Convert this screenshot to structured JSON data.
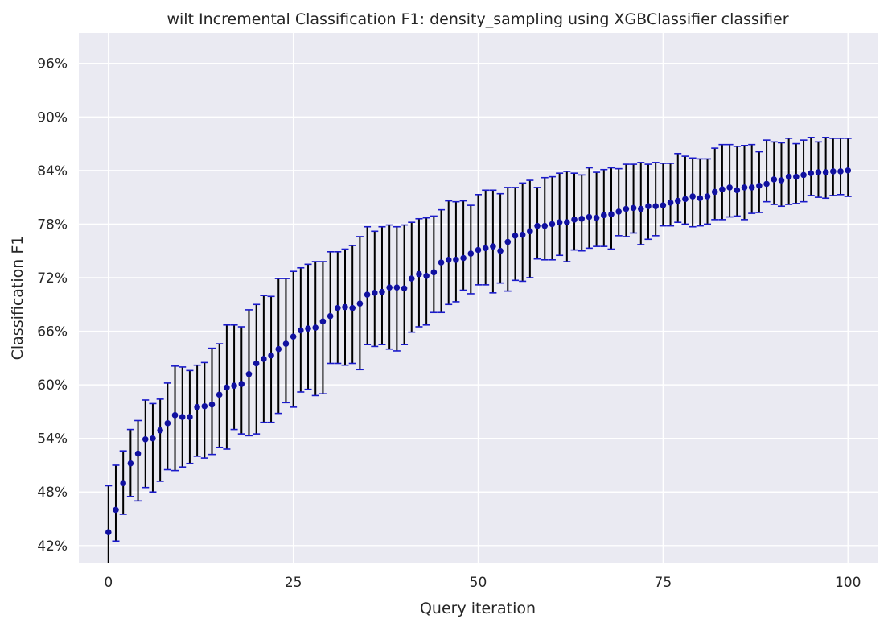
{
  "chart_data": {
    "type": "scatter",
    "title": "wilt Incremental Classification F1: density_sampling using XGBClassifier classifier",
    "xlabel": "Query iteration",
    "ylabel": "Classification F1",
    "xlim": [
      -4,
      104
    ],
    "ylim": [
      0.4,
      0.994
    ],
    "x_ticks": [
      0,
      25,
      50,
      75,
      100
    ],
    "y_ticks": [
      0.42,
      0.48,
      0.54,
      0.6,
      0.66,
      0.72,
      0.78,
      0.84,
      0.9,
      0.96
    ],
    "y_tick_labels": [
      "42%",
      "48%",
      "54%",
      "60%",
      "66%",
      "72%",
      "78%",
      "84%",
      "90%",
      "96%"
    ],
    "grid": true,
    "colors": {
      "background": "#eaeaf2",
      "grid": "#ffffff",
      "marker": "#1010a0",
      "errorbar": "#000000",
      "cap": "#1a1acc",
      "text": "#262626"
    },
    "series": [
      {
        "x": [
          0,
          1,
          2,
          3,
          4,
          5,
          6,
          7,
          8,
          9,
          10,
          11,
          12,
          13,
          14,
          15,
          16,
          17,
          18,
          19,
          20,
          21,
          22,
          23,
          24,
          25,
          26,
          27,
          28,
          29,
          30,
          31,
          32,
          33,
          34,
          35,
          36,
          37,
          38,
          39,
          40,
          41,
          42,
          43,
          44,
          45,
          46,
          47,
          48,
          49,
          50,
          51,
          52,
          53,
          54,
          55,
          56,
          57,
          58,
          59,
          60,
          61,
          62,
          63,
          64,
          65,
          66,
          67,
          68,
          69,
          70,
          71,
          72,
          73,
          74,
          75,
          76,
          77,
          78,
          79,
          80,
          81,
          82,
          83,
          84,
          85,
          86,
          87,
          88,
          89,
          90,
          91,
          92,
          93,
          94,
          95,
          96,
          97,
          98,
          99,
          100
        ],
        "y": [
          0.435,
          0.46,
          0.49,
          0.512,
          0.523,
          0.539,
          0.54,
          0.549,
          0.557,
          0.566,
          0.564,
          0.564,
          0.575,
          0.576,
          0.578,
          0.589,
          0.597,
          0.599,
          0.601,
          0.612,
          0.624,
          0.629,
          0.633,
          0.64,
          0.646,
          0.654,
          0.661,
          0.663,
          0.664,
          0.671,
          0.677,
          0.686,
          0.687,
          0.686,
          0.691,
          0.701,
          0.703,
          0.704,
          0.709,
          0.709,
          0.708,
          0.719,
          0.724,
          0.722,
          0.726,
          0.737,
          0.74,
          0.74,
          0.742,
          0.747,
          0.751,
          0.753,
          0.755,
          0.75,
          0.76,
          0.767,
          0.768,
          0.772,
          0.778,
          0.778,
          0.78,
          0.782,
          0.782,
          0.785,
          0.786,
          0.788,
          0.787,
          0.79,
          0.791,
          0.794,
          0.797,
          0.798,
          0.797,
          0.8,
          0.8,
          0.801,
          0.804,
          0.806,
          0.808,
          0.811,
          0.809,
          0.811,
          0.816,
          0.819,
          0.821,
          0.818,
          0.821,
          0.821,
          0.823,
          0.825,
          0.83,
          0.829,
          0.833,
          0.833,
          0.835,
          0.837,
          0.838,
          0.838,
          0.839,
          0.839,
          0.84
        ],
        "yerr_low": [
          0.395,
          0.425,
          0.455,
          0.475,
          0.47,
          0.485,
          0.48,
          0.492,
          0.505,
          0.504,
          0.508,
          0.512,
          0.52,
          0.518,
          0.522,
          0.53,
          0.528,
          0.55,
          0.545,
          0.543,
          0.545,
          0.558,
          0.558,
          0.568,
          0.58,
          0.575,
          0.592,
          0.595,
          0.588,
          0.59,
          0.624,
          0.624,
          0.622,
          0.624,
          0.617,
          0.645,
          0.643,
          0.645,
          0.64,
          0.638,
          0.645,
          0.659,
          0.665,
          0.667,
          0.681,
          0.681,
          0.69,
          0.693,
          0.706,
          0.702,
          0.712,
          0.712,
          0.703,
          0.714,
          0.705,
          0.717,
          0.716,
          0.72,
          0.741,
          0.74,
          0.74,
          0.745,
          0.738,
          0.751,
          0.75,
          0.753,
          0.755,
          0.755,
          0.752,
          0.767,
          0.766,
          0.77,
          0.757,
          0.763,
          0.767,
          0.778,
          0.778,
          0.782,
          0.78,
          0.777,
          0.778,
          0.78,
          0.785,
          0.785,
          0.788,
          0.789,
          0.785,
          0.792,
          0.793,
          0.805,
          0.802,
          0.8,
          0.802,
          0.803,
          0.805,
          0.812,
          0.81,
          0.809,
          0.812,
          0.813,
          0.811
        ],
        "yerr_high": [
          0.487,
          0.51,
          0.526,
          0.55,
          0.56,
          0.583,
          0.579,
          0.584,
          0.602,
          0.621,
          0.62,
          0.616,
          0.622,
          0.625,
          0.641,
          0.646,
          0.667,
          0.667,
          0.665,
          0.684,
          0.69,
          0.7,
          0.699,
          0.719,
          0.719,
          0.727,
          0.731,
          0.735,
          0.738,
          0.738,
          0.749,
          0.749,
          0.752,
          0.756,
          0.766,
          0.777,
          0.772,
          0.777,
          0.779,
          0.777,
          0.779,
          0.782,
          0.786,
          0.787,
          0.789,
          0.796,
          0.806,
          0.805,
          0.806,
          0.801,
          0.813,
          0.818,
          0.818,
          0.814,
          0.821,
          0.821,
          0.826,
          0.829,
          0.821,
          0.832,
          0.833,
          0.837,
          0.839,
          0.837,
          0.835,
          0.843,
          0.838,
          0.841,
          0.843,
          0.842,
          0.847,
          0.847,
          0.849,
          0.847,
          0.849,
          0.848,
          0.848,
          0.859,
          0.856,
          0.854,
          0.853,
          0.853,
          0.865,
          0.869,
          0.869,
          0.867,
          0.868,
          0.869,
          0.861,
          0.874,
          0.872,
          0.871,
          0.876,
          0.87,
          0.874,
          0.877,
          0.872,
          0.877,
          0.876,
          0.876,
          0.876
        ]
      }
    ]
  }
}
